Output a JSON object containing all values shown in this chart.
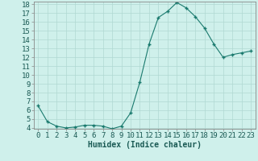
{
  "x": [
    0,
    1,
    2,
    3,
    4,
    5,
    6,
    7,
    8,
    9,
    10,
    11,
    12,
    13,
    14,
    15,
    16,
    17,
    18,
    19,
    20,
    21,
    22,
    23
  ],
  "y": [
    6.5,
    4.7,
    4.2,
    4.0,
    4.1,
    4.3,
    4.3,
    4.2,
    3.9,
    4.2,
    5.7,
    9.2,
    13.5,
    16.5,
    17.2,
    18.2,
    17.6,
    16.6,
    15.3,
    13.5,
    12.0,
    12.3,
    12.5,
    12.7
  ],
  "xlabel": "Humidex (Indice chaleur)",
  "ylim": [
    4,
    18
  ],
  "xlim": [
    -0.5,
    23.5
  ],
  "yticks": [
    4,
    5,
    6,
    7,
    8,
    9,
    10,
    11,
    12,
    13,
    14,
    15,
    16,
    17,
    18
  ],
  "xticks": [
    0,
    1,
    2,
    3,
    4,
    5,
    6,
    7,
    8,
    9,
    10,
    11,
    12,
    13,
    14,
    15,
    16,
    17,
    18,
    19,
    20,
    21,
    22,
    23
  ],
  "line_color": "#1a7a6e",
  "marker_color": "#1a7a6e",
  "bg_color": "#cff0eb",
  "grid_color": "#b0d8d2",
  "axis_color": "#555555",
  "xlabel_fontsize": 7,
  "tick_fontsize": 6.5
}
